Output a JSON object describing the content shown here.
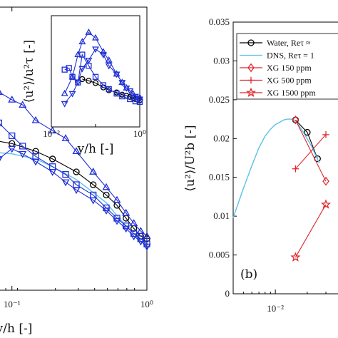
{
  "chart_data": [
    {
      "type": "line",
      "panel": "left",
      "xscale": "log",
      "xlim": [
        0.01,
        1
      ],
      "xlabel": "y/h [-]",
      "xtick_labels": [
        "10⁻¹",
        "10⁰"
      ],
      "series": [
        {
          "name": "Water",
          "color": "#000000",
          "marker": "circle",
          "x": [
            0.06,
            0.1,
            0.15,
            0.2,
            0.3,
            0.4,
            0.5,
            0.6,
            0.7,
            0.8,
            0.9,
            1.0
          ],
          "y": [
            0.79,
            0.77,
            0.74,
            0.71,
            0.66,
            0.61,
            0.57,
            0.53,
            0.48,
            0.44,
            0.41,
            0.4
          ]
        },
        {
          "name": "DNS",
          "color": "#5bc0e8",
          "marker": "none",
          "x": [
            0.06,
            0.1,
            0.15,
            0.2,
            0.3,
            0.4,
            0.5,
            0.6,
            0.7,
            0.8,
            0.9,
            1.0
          ],
          "y": [
            0.74,
            0.73,
            0.71,
            0.68,
            0.63,
            0.58,
            0.54,
            0.49,
            0.45,
            0.42,
            0.39,
            0.38
          ]
        },
        {
          "name": "XG triangle-up",
          "color": "#1f2fd6",
          "marker": "triangle-up",
          "x": [
            0.06,
            0.08,
            0.1,
            0.12,
            0.15,
            0.2,
            0.25,
            0.3,
            0.4,
            0.5,
            0.6,
            0.7,
            0.8,
            0.9,
            1.0
          ],
          "y": [
            0.98,
            0.97,
            0.94,
            0.92,
            0.86,
            0.82,
            0.79,
            0.74,
            0.66,
            0.6,
            0.55,
            0.5,
            0.46,
            0.43,
            0.41
          ]
        },
        {
          "name": "XG square",
          "color": "#1f2fd6",
          "marker": "square",
          "x": [
            0.06,
            0.08,
            0.1,
            0.12,
            0.15,
            0.2,
            0.25,
            0.3,
            0.4,
            0.5,
            0.6,
            0.7,
            0.8,
            0.9,
            1.0
          ],
          "y": [
            0.88,
            0.85,
            0.8,
            0.76,
            0.72,
            0.68,
            0.65,
            0.61,
            0.57,
            0.52,
            0.48,
            0.45,
            0.42,
            0.4,
            0.38
          ]
        },
        {
          "name": "XG triangle-down",
          "color": "#1f2fd6",
          "marker": "triangle-down",
          "x": [
            0.06,
            0.08,
            0.1,
            0.12,
            0.15,
            0.2,
            0.25,
            0.3,
            0.4,
            0.5,
            0.6,
            0.7,
            0.8,
            0.9,
            1.0
          ],
          "y": [
            0.68,
            0.71,
            0.75,
            0.73,
            0.7,
            0.66,
            0.62,
            0.59,
            0.55,
            0.51,
            0.47,
            0.44,
            0.41,
            0.39,
            0.37
          ]
        }
      ]
    },
    {
      "type": "line",
      "panel": "left-inset",
      "xscale": "log",
      "xlim": [
        0.01,
        1
      ],
      "xlabel": "y/h [-]",
      "ylabel": "⟨u²⟩/u²τ [-]",
      "xtick_labels": [
        "10⁻²",
        "10⁰"
      ],
      "series": [
        {
          "name": "Water",
          "color": "#000000",
          "marker": "circle",
          "x": [
            0.05,
            0.07,
            0.1,
            0.15,
            0.2,
            0.3,
            0.4,
            0.5,
            0.6,
            0.7,
            0.8,
            0.9,
            1.0
          ],
          "y": [
            8.6,
            8.3,
            7.9,
            7.1,
            6.6,
            6.2,
            5.8,
            5.6,
            5.4,
            5.2,
            5.0,
            4.9,
            4.8
          ]
        },
        {
          "name": "XG triangle-up",
          "color": "#1f2fd6",
          "marker": "triangle-up",
          "x": [
            0.02,
            0.03,
            0.04,
            0.05,
            0.07,
            0.1,
            0.15,
            0.2,
            0.3,
            0.4,
            0.5,
            0.7,
            1.0
          ],
          "y": [
            6.0,
            9.0,
            13.0,
            15.3,
            17.0,
            16.0,
            13.5,
            12.0,
            9.5,
            8.0,
            7.0,
            6.0,
            5.3
          ]
        },
        {
          "name": "XG square",
          "color": "#1f2fd6",
          "marker": "square",
          "x": [
            0.02,
            0.025,
            0.03,
            0.04,
            0.05,
            0.07,
            0.1,
            0.15,
            0.2,
            0.3,
            0.4,
            0.6,
            0.8,
            1.0
          ],
          "y": [
            10.3,
            10.6,
            9.0,
            8.0,
            13.0,
            11.0,
            9.0,
            7.5,
            6.8,
            6.0,
            5.5,
            5.0,
            4.6,
            4.5
          ]
        },
        {
          "name": "XG triangle-down",
          "color": "#1f2fd6",
          "marker": "triangle-down",
          "x": [
            0.02,
            0.03,
            0.04,
            0.05,
            0.07,
            0.1,
            0.15,
            0.2,
            0.3,
            0.4,
            0.5,
            0.6,
            0.8,
            1.0
          ],
          "y": [
            4.2,
            6.0,
            8.0,
            10.5,
            12.0,
            14.0,
            13.0,
            11.0,
            9.5,
            8.0,
            7.0,
            6.5,
            5.5,
            5.0
          ]
        }
      ]
    },
    {
      "type": "line",
      "panel": "right",
      "label": "(b)",
      "xscale": "log",
      "xlim": [
        0.004,
        0.05
      ],
      "ylim": [
        0,
        0.035
      ],
      "ylabel": "⟨u²⟩/U²b [-]",
      "ytick_labels": [
        "0",
        "0.005",
        "0.01",
        "0.015",
        "0.02",
        "0.025",
        "0.03",
        "0.035"
      ],
      "xtick_labels": [
        "10⁻²"
      ],
      "legend": [
        "Water, Reτ ≈",
        "DNS, Reτ = 1",
        "XG 150 ppm",
        "XG 500 ppm",
        "XG 1500 ppm"
      ],
      "series": [
        {
          "name": "Water",
          "color": "#000000",
          "marker": "circle",
          "x": [
            0.0155,
            0.02,
            0.025
          ],
          "y": [
            0.0224,
            0.0208,
            0.0174
          ]
        },
        {
          "name": "DNS",
          "color": "#5bc0e8",
          "marker": "none",
          "x": [
            0.004,
            0.0045,
            0.005,
            0.006,
            0.007,
            0.008,
            0.009,
            0.01,
            0.011,
            0.012,
            0.013,
            0.014,
            0.015,
            0.0155,
            0.018,
            0.022,
            0.026
          ],
          "y": [
            0.0098,
            0.0118,
            0.0136,
            0.0165,
            0.0188,
            0.0203,
            0.0212,
            0.0218,
            0.0221,
            0.0224,
            0.0225,
            0.0225,
            0.0224,
            0.0223,
            0.021,
            0.019,
            0.0168
          ]
        },
        {
          "name": "XG 150 ppm",
          "color": "#e0282e",
          "marker": "diamond",
          "x": [
            0.0155,
            0.03
          ],
          "y": [
            0.0224,
            0.0145
          ]
        },
        {
          "name": "XG 500 ppm",
          "color": "#e0282e",
          "marker": "plus",
          "x": [
            0.0155,
            0.03
          ],
          "y": [
            0.0161,
            0.0205
          ]
        },
        {
          "name": "XG 1500 ppm",
          "color": "#e0282e",
          "marker": "star",
          "x": [
            0.0155,
            0.03
          ],
          "y": [
            0.0047,
            0.0115
          ]
        }
      ]
    }
  ]
}
